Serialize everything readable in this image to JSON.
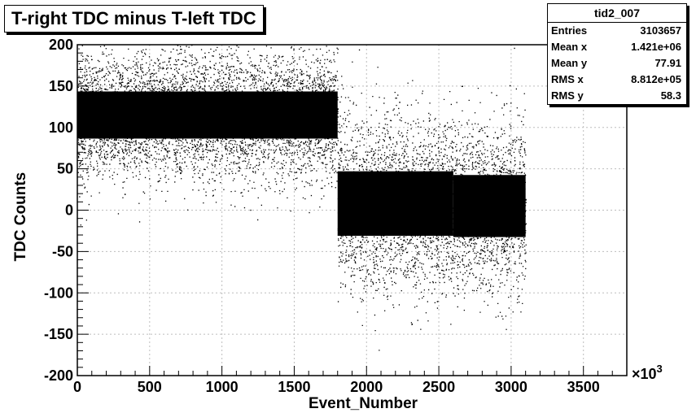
{
  "chart_data": {
    "type": "scatter",
    "title": "T-right TDC minus T-left TDC",
    "xlabel": "Event_Number",
    "ylabel": "TDC Counts",
    "x_exponent": "×10",
    "x_exponent_power": "3",
    "xlim": [
      0,
      3800
    ],
    "ylim": [
      -200,
      200
    ],
    "x_ticks": [
      0,
      500,
      1000,
      1500,
      2000,
      2500,
      3000,
      3500
    ],
    "y_ticks": [
      -200,
      -150,
      -100,
      -50,
      0,
      50,
      100,
      150,
      200
    ],
    "x_tick_labels": [
      "0",
      "500",
      "1000",
      "1500",
      "2000",
      "2500",
      "3000",
      "3500"
    ],
    "y_tick_labels": [
      "-200",
      "-150",
      "-100",
      "-50",
      "0",
      "50",
      "100",
      "150",
      "200"
    ],
    "grid": true,
    "point_color": "#000000",
    "regions": [
      {
        "x": [
          0,
          1800
        ],
        "y_center": 115,
        "y_spread": 38
      },
      {
        "x": [
          1800,
          2600
        ],
        "y_center": 8,
        "y_spread": 52
      },
      {
        "x": [
          2600,
          3100
        ],
        "y_center": 5,
        "y_spread": 50
      }
    ],
    "stats": {
      "name": "tid2_007",
      "rows": [
        {
          "label": "Entries",
          "value": "3103657"
        },
        {
          "label": "Mean x",
          "value": "1.421e+06"
        },
        {
          "label": "Mean y",
          "value": "77.91"
        },
        {
          "label": "RMS x",
          "value": "8.812e+05"
        },
        {
          "label": "RMS y",
          "value": "58.3"
        }
      ]
    }
  }
}
